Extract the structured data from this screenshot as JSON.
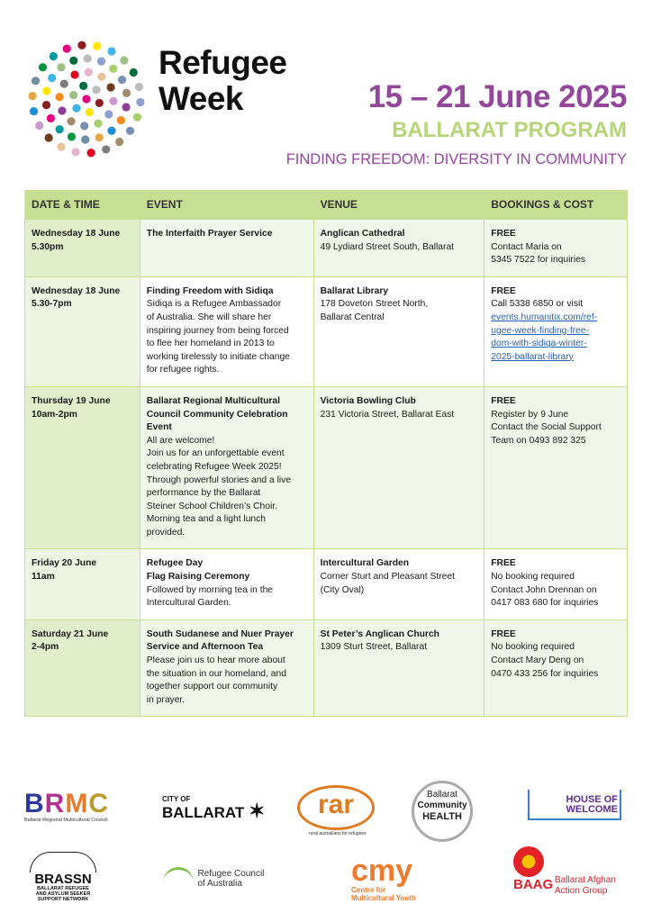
{
  "header": {
    "brand_line1": "Refugee",
    "brand_line2": "Week",
    "dates": "15 – 21 June 2025",
    "program": "BALLARAT PROGRAM",
    "theme": "FINDING FREEDOM: DIVERSITY IN COMMUNITY"
  },
  "colors": {
    "purple": "#93479b",
    "green": "#b5d678",
    "header_green": "#c5df93",
    "link": "#2a5fb3"
  },
  "table": {
    "headers": [
      "DATE & TIME",
      "EVENT",
      "VENUE",
      "BOOKINGS & COST"
    ],
    "rows": [
      {
        "date": [
          "Wednesday 18 June",
          "5.30pm"
        ],
        "event_title": [
          "The Interfaith Prayer Service"
        ],
        "event_desc": [],
        "venue_name": "Anglican Cathedral",
        "venue_addr": [
          "49 Lydiard Street South, Ballarat"
        ],
        "cost": "FREE",
        "booking": [
          "Contact Maria on",
          "5345 7522 for inquiries"
        ],
        "link": []
      },
      {
        "date": [
          "Wednesday 18 June",
          "5.30-7pm"
        ],
        "event_title": [
          "Finding Freedom with Sidiqa"
        ],
        "event_desc": [
          "Sidiqa is a Refugee Ambassador",
          "of Australia. She will share her",
          "inspiring journey from being forced",
          "to flee her homeland in 2013 to",
          "working tirelessly to initiate change",
          "for refugee rights."
        ],
        "venue_name": "Ballarat Library",
        "venue_addr": [
          "178 Doveton Street North,",
          "Ballarat Central"
        ],
        "cost": "FREE",
        "booking": [
          "Call 5338 6850 or visit"
        ],
        "link": [
          "events.humanitix.com/ref-",
          "ugee-week-finding-free-",
          "dom-with-sidiqa-winter-",
          "2025-ballarat-library"
        ]
      },
      {
        "date": [
          "Thursday 19 June",
          "10am-2pm"
        ],
        "event_title": [
          "Ballarat Regional Multicultural",
          "Council Community Celebration",
          "Event"
        ],
        "event_desc": [
          "All are welcome!",
          "Join us for an unforgettable event",
          "celebrating Refugee Week 2025!",
          "Through powerful stories and a live",
          "performance by the Ballarat",
          "Steiner School Children’s Choir.",
          "Morning tea and a light lunch",
          "provided."
        ],
        "venue_name": "Victoria Bowling Club",
        "venue_addr": [
          "231 Victoria Street, Ballarat East"
        ],
        "cost": "FREE",
        "booking": [
          "Register by 9 June",
          "Contact the Social Support",
          "Team on 0493 892 325"
        ],
        "link": []
      },
      {
        "date": [
          "Friday 20 June",
          "11am"
        ],
        "event_title": [
          "Refugee Day",
          "Flag Raising Ceremony"
        ],
        "event_desc": [
          "Followed by morning tea in the",
          "Intercultural Garden."
        ],
        "venue_name": "Intercultural Garden",
        "venue_addr": [
          "Corner Sturt and Pleasant Street",
          "(City Oval)"
        ],
        "cost": "FREE",
        "booking": [
          "No booking required",
          "Contact John Drennan on",
          "0417 083 680 for inquiries"
        ],
        "link": []
      },
      {
        "date": [
          "Saturday 21 June",
          "2-4pm"
        ],
        "event_title": [
          "South Sudanese and Nuer Prayer",
          "Service and Afternoon Tea"
        ],
        "event_desc": [
          "Please join us to hear more about",
          "the situation in our homeland, and",
          "together support our community",
          "in prayer."
        ],
        "venue_name": "St Peter’s Anglican Church",
        "venue_addr": [
          "1309 Sturt Street, Ballarat"
        ],
        "cost": "FREE",
        "booking": [
          "No booking required",
          "Contact Mary Deng on",
          "0470 433 256 for inquiries"
        ],
        "link": []
      }
    ]
  },
  "logos": {
    "brmc": "BRMC",
    "brmc_sub": "Ballarat Regional Multicultural Council",
    "city_of": "CITY OF",
    "ballarat": "BALLARAT",
    "rar": "rar",
    "rar_sub": "rural australians for refugees",
    "bch1": "Ballarat",
    "bch2": "Community",
    "bch3": "HEALTH",
    "how1": "HOUSE OF",
    "how2": "WELCOME",
    "brassn": "BRASSN",
    "brassn_sub1": "BALLARAT REFUGEE",
    "brassn_sub2": "AND ASYLUM SEEKER",
    "brassn_sub3": "SUPPORT NETWORK",
    "rca1": "Refugee Council",
    "rca2": "of Australia",
    "cmy": "cmy",
    "cmy1": "Centre for",
    "cmy2": "Multicultural Youth",
    "baag": "BAAG",
    "baag1": "Ballarat Afghan",
    "baag2": "Action Group"
  }
}
